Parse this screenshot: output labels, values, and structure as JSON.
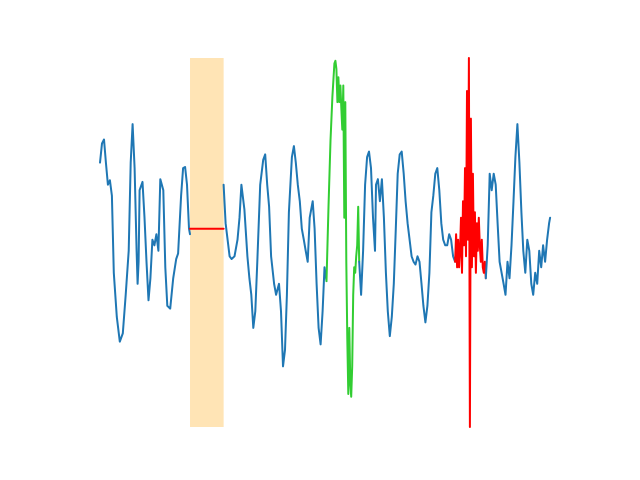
{
  "chart_data": {
    "type": "line",
    "title": "",
    "xlabel": "",
    "ylabel": "",
    "axes_visible": false,
    "grid": false,
    "legend": "none",
    "xlim": [
      0,
      460
    ],
    "ylim": [
      -3.6,
      3.1
    ],
    "shaded_region": {
      "x": [
        91,
        125
      ],
      "color": "#ffe4b5"
    },
    "series": [
      {
        "role": "signal",
        "color": "#1f77b4",
        "points": [
          [
            0,
            1.2
          ],
          [
            2,
            1.55
          ],
          [
            4,
            1.62
          ],
          [
            6,
            1.2
          ],
          [
            8,
            0.8
          ],
          [
            10,
            0.88
          ],
          [
            12,
            0.6
          ],
          [
            14,
            -0.8
          ],
          [
            17,
            -1.6
          ],
          [
            20,
            -2.05
          ],
          [
            23,
            -1.9
          ],
          [
            26,
            -1.2
          ],
          [
            29,
            -0.4
          ],
          [
            31,
            1.2
          ],
          [
            33,
            1.9
          ],
          [
            35,
            1.1
          ],
          [
            37,
            -0.4
          ],
          [
            38,
            -1.0
          ],
          [
            39,
            -0.6
          ],
          [
            40,
            0.7
          ],
          [
            43,
            0.85
          ],
          [
            45,
            0.2
          ],
          [
            47,
            -0.6
          ],
          [
            49,
            -1.3
          ],
          [
            51,
            -0.9
          ],
          [
            53,
            -0.2
          ],
          [
            55,
            -0.3
          ],
          [
            57,
            -0.1
          ],
          [
            59,
            -0.4
          ],
          [
            61,
            0.9
          ],
          [
            64,
            0.7
          ],
          [
            66,
            -0.7
          ],
          [
            68,
            -1.4
          ],
          [
            71,
            -1.45
          ],
          [
            74,
            -0.9
          ],
          [
            77,
            -0.55
          ],
          [
            79,
            -0.45
          ],
          [
            82,
            0.6
          ],
          [
            84,
            1.1
          ],
          [
            86,
            1.12
          ],
          [
            88,
            0.8
          ],
          [
            90,
            0.0
          ],
          [
            91,
            -0.1
          ]
        ]
      },
      {
        "role": "signal",
        "color": "#1f77b4",
        "points": [
          [
            125,
            0.8
          ],
          [
            127,
            0.1
          ],
          [
            129,
            -0.2
          ],
          [
            131,
            -0.5
          ],
          [
            133,
            -0.55
          ],
          [
            136,
            -0.5
          ],
          [
            139,
            -0.2
          ],
          [
            141,
            0.2
          ],
          [
            143,
            0.8
          ],
          [
            146,
            0.35
          ],
          [
            149,
            -0.5
          ],
          [
            151,
            -0.9
          ],
          [
            153,
            -1.2
          ],
          [
            155,
            -1.8
          ],
          [
            157,
            -1.5
          ],
          [
            159,
            -0.6
          ],
          [
            162,
            0.8
          ],
          [
            165,
            1.25
          ],
          [
            167,
            1.35
          ],
          [
            169,
            0.8
          ],
          [
            171,
            0.4
          ],
          [
            173,
            -0.5
          ],
          [
            176,
            -1.0
          ],
          [
            178,
            -1.2
          ],
          [
            181,
            -1.0
          ],
          [
            183,
            -1.5
          ],
          [
            185,
            -2.5
          ],
          [
            187,
            -2.2
          ],
          [
            189,
            -1.2
          ],
          [
            191,
            0.3
          ],
          [
            194,
            1.3
          ],
          [
            196,
            1.5
          ],
          [
            198,
            1.2
          ],
          [
            200,
            0.8
          ],
          [
            202,
            0.5
          ],
          [
            204,
            0.0
          ],
          [
            206,
            -0.2
          ],
          [
            208,
            -0.4
          ],
          [
            210,
            -0.6
          ],
          [
            212,
            0.2
          ],
          [
            215,
            0.5
          ],
          [
            217,
            0.0
          ],
          [
            219,
            -1.0
          ],
          [
            221,
            -1.8
          ],
          [
            223,
            -2.1
          ],
          [
            225,
            -1.5
          ],
          [
            227,
            -0.7
          ],
          [
            229,
            -0.95
          ]
        ]
      },
      {
        "role": "highlight",
        "color": "#32cd32",
        "points": [
          [
            229,
            -0.95
          ],
          [
            231,
            0.4
          ],
          [
            233,
            1.6
          ],
          [
            235,
            2.4
          ],
          [
            237,
            3.0
          ],
          [
            238,
            3.05
          ],
          [
            239,
            2.9
          ],
          [
            240,
            2.3
          ],
          [
            241,
            2.75
          ],
          [
            242,
            2.3
          ],
          [
            243,
            2.6
          ],
          [
            244,
            2.2
          ],
          [
            245,
            1.8
          ],
          [
            246,
            2.6
          ],
          [
            247,
            0.2
          ],
          [
            248,
            2.3
          ],
          [
            249,
            -0.6
          ],
          [
            250,
            -2.0
          ],
          [
            251,
            -3.0
          ],
          [
            252,
            -1.8
          ],
          [
            253,
            -2.8
          ],
          [
            254,
            -3.05
          ],
          [
            255,
            -2.5
          ],
          [
            256,
            -1.2
          ],
          [
            257,
            -0.7
          ],
          [
            258,
            -0.8
          ],
          [
            259,
            -0.5
          ],
          [
            260,
            -0.3
          ],
          [
            261,
            0.4
          ],
          [
            262,
            -0.6
          ]
        ]
      },
      {
        "role": "signal",
        "color": "#1f77b4",
        "points": [
          [
            262,
            -0.6
          ],
          [
            264,
            -1.2
          ],
          [
            266,
            -0.4
          ],
          [
            268,
            0.8
          ],
          [
            270,
            1.3
          ],
          [
            272,
            1.4
          ],
          [
            274,
            1.1
          ],
          [
            276,
            0.2
          ],
          [
            278,
            -0.4
          ],
          [
            279,
            0.8
          ],
          [
            281,
            0.9
          ],
          [
            283,
            0.5
          ],
          [
            285,
            0.9
          ],
          [
            287,
            0.2
          ],
          [
            289,
            -0.8
          ],
          [
            291,
            -1.5
          ],
          [
            293,
            -1.95
          ],
          [
            295,
            -1.6
          ],
          [
            297,
            -1.0
          ],
          [
            299,
            0.0
          ],
          [
            301,
            1.0
          ],
          [
            303,
            1.35
          ],
          [
            305,
            1.4
          ],
          [
            307,
            1.0
          ],
          [
            309,
            0.5
          ],
          [
            311,
            0.1
          ],
          [
            313,
            -0.2
          ],
          [
            315,
            -0.5
          ],
          [
            317,
            -0.6
          ],
          [
            319,
            -0.65
          ],
          [
            321,
            -0.5
          ],
          [
            323,
            -0.6
          ],
          [
            325,
            -1.0
          ],
          [
            327,
            -1.4
          ],
          [
            329,
            -1.7
          ],
          [
            331,
            -1.4
          ],
          [
            333,
            -0.8
          ],
          [
            335,
            0.3
          ],
          [
            337,
            0.6
          ],
          [
            339,
            1.0
          ],
          [
            341,
            1.1
          ],
          [
            343,
            0.7
          ],
          [
            345,
            0.1
          ],
          [
            347,
            -0.2
          ],
          [
            349,
            -0.3
          ],
          [
            351,
            -0.3
          ],
          [
            353,
            -0.1
          ],
          [
            355,
            -0.2
          ],
          [
            357,
            -0.5
          ],
          [
            359,
            -0.6
          ]
        ]
      },
      {
        "role": "highlight",
        "color": "#ff0000",
        "points": [
          [
            359,
            -0.6
          ],
          [
            360,
            -0.1
          ],
          [
            361,
            -0.7
          ],
          [
            362,
            -0.2
          ],
          [
            363,
            -0.7
          ],
          [
            364,
            -0.4
          ],
          [
            365,
            0.2
          ],
          [
            366,
            -0.8
          ],
          [
            367,
            0.5
          ],
          [
            368,
            -0.3
          ],
          [
            369,
            1.1
          ],
          [
            370,
            -0.5
          ],
          [
            371,
            2.5
          ],
          [
            372,
            -0.2
          ],
          [
            373,
            3.1
          ],
          [
            374,
            -3.6
          ],
          [
            375,
            2.0
          ],
          [
            376,
            -0.7
          ],
          [
            377,
            1.0
          ],
          [
            378,
            -0.5
          ],
          [
            379,
            0.3
          ],
          [
            380,
            -0.8
          ],
          [
            381,
            0.1
          ],
          [
            382,
            -0.4
          ],
          [
            383,
            0.2
          ],
          [
            384,
            -0.3
          ],
          [
            385,
            -0.6
          ],
          [
            386,
            -0.2
          ],
          [
            387,
            -0.7
          ],
          [
            388,
            -0.8
          ],
          [
            389,
            -0.6
          ],
          [
            390,
            -0.9
          ]
        ]
      },
      {
        "role": "signal",
        "color": "#1f77b4",
        "points": [
          [
            390,
            -0.9
          ],
          [
            392,
            -0.3
          ],
          [
            394,
            1.0
          ],
          [
            396,
            0.7
          ],
          [
            398,
            1.0
          ],
          [
            400,
            0.8
          ],
          [
            402,
            0.1
          ],
          [
            404,
            -0.6
          ],
          [
            406,
            -0.8
          ],
          [
            408,
            -1.0
          ],
          [
            410,
            -1.2
          ],
          [
            412,
            -0.6
          ],
          [
            414,
            -0.9
          ],
          [
            416,
            -0.3
          ],
          [
            418,
            0.5
          ],
          [
            420,
            1.3
          ],
          [
            422,
            1.9
          ],
          [
            424,
            1.2
          ],
          [
            426,
            0.3
          ],
          [
            428,
            -0.4
          ],
          [
            430,
            -0.8
          ],
          [
            432,
            -0.2
          ],
          [
            434,
            -0.4
          ],
          [
            436,
            -1.0
          ],
          [
            438,
            -1.2
          ],
          [
            440,
            -0.8
          ],
          [
            442,
            -1.0
          ],
          [
            444,
            -0.4
          ],
          [
            446,
            -0.7
          ],
          [
            448,
            -0.3
          ],
          [
            450,
            -0.6
          ],
          [
            452,
            -0.2
          ],
          [
            454,
            0.1
          ],
          [
            455,
            0.2
          ]
        ]
      },
      {
        "role": "highlight",
        "color": "#ff0000",
        "points": [
          [
            91,
            0.0
          ],
          [
            125,
            0.0
          ]
        ]
      }
    ]
  }
}
